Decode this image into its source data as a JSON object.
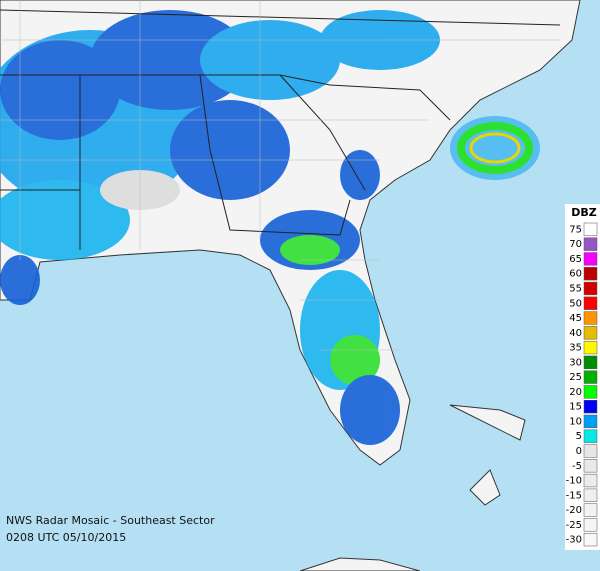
{
  "legend": {
    "title": "DBZ",
    "entries": [
      {
        "label": "75",
        "color": "#ffffff"
      },
      {
        "label": "70",
        "color": "#9854c6"
      },
      {
        "label": "65",
        "color": "#f800fd"
      },
      {
        "label": "60",
        "color": "#bc0000"
      },
      {
        "label": "55",
        "color": "#d40000"
      },
      {
        "label": "50",
        "color": "#fd0000"
      },
      {
        "label": "45",
        "color": "#fd9500"
      },
      {
        "label": "40",
        "color": "#e5bc00"
      },
      {
        "label": "35",
        "color": "#fdf802"
      },
      {
        "label": "30",
        "color": "#008e00"
      },
      {
        "label": "25",
        "color": "#01b001"
      },
      {
        "label": "20",
        "color": "#02fd02"
      },
      {
        "label": "15",
        "color": "#0300f4"
      },
      {
        "label": "10",
        "color": "#019ff4"
      },
      {
        "label": "5",
        "color": "#04e9e7"
      },
      {
        "label": "0",
        "color": "#e6e6e6"
      },
      {
        "label": "-5",
        "color": "#e9e9e9"
      },
      {
        "label": "-10",
        "color": "#ececec"
      },
      {
        "label": "-15",
        "color": "#efefef"
      },
      {
        "label": "-20",
        "color": "#f2f2f2"
      },
      {
        "label": "-25",
        "color": "#f5f5f5"
      },
      {
        "label": "-30",
        "color": "#f8f8f8"
      }
    ]
  },
  "caption": {
    "title": "NWS Radar Mosaic - Southeast Sector",
    "timestamp": "0208 UTC 05/10/2015"
  }
}
